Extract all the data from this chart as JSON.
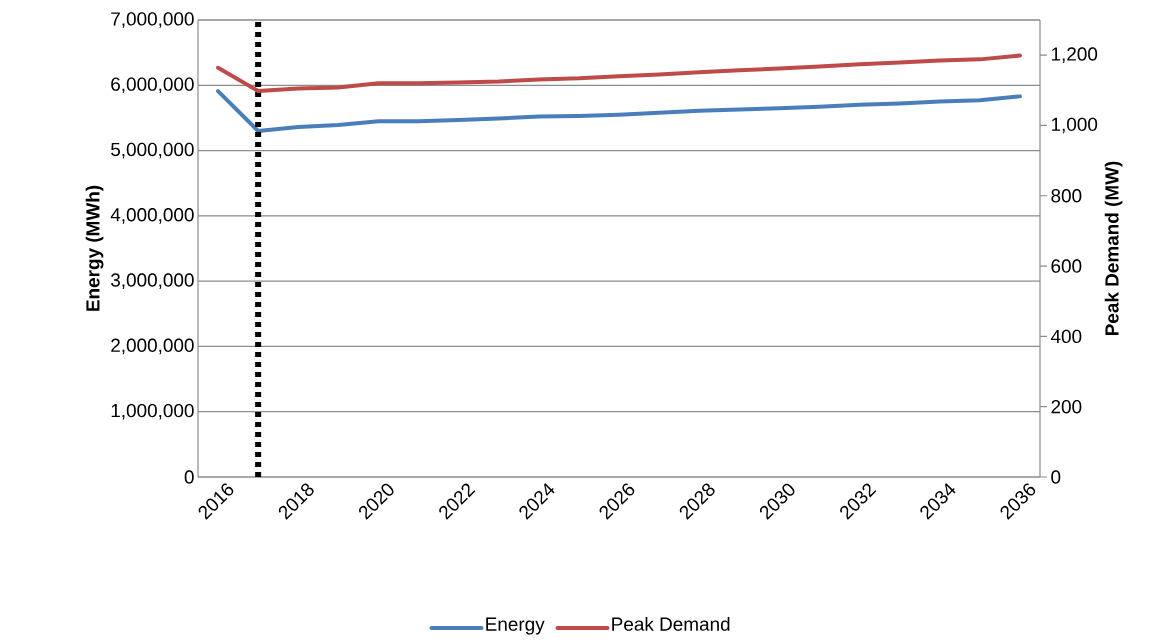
{
  "chart_data": {
    "type": "line",
    "ylabel": "Energy (MWh)",
    "y2label": "Peak Demand (MW)",
    "x": [
      2016,
      2017,
      2018,
      2019,
      2020,
      2021,
      2022,
      2023,
      2024,
      2025,
      2026,
      2027,
      2028,
      2029,
      2030,
      2031,
      2032,
      2033,
      2034,
      2035,
      2036
    ],
    "series": [
      {
        "name": "Energy",
        "color": "#4a7ebb",
        "values": [
          5910000,
          5300000,
          5360000,
          5390000,
          5450000,
          5450000,
          5470000,
          5490000,
          5520000,
          5530000,
          5550000,
          5580000,
          5610000,
          5630000,
          5650000,
          5670000,
          5700000,
          5720000,
          5750000,
          5770000,
          5830000
        ]
      },
      {
        "name": "Peak Demand",
        "color": "#be4b48",
        "axis": "y2",
        "values": [
          1164,
          1098,
          1105,
          1108,
          1120,
          1120,
          1122,
          1125,
          1131,
          1134,
          1140,
          1145,
          1151,
          1157,
          1162,
          1168,
          1174,
          1179,
          1185,
          1188,
          1199
        ]
      }
    ],
    "xlim": [
      2015.5,
      2036.5
    ],
    "xticks": [
      2016,
      2018,
      2020,
      2022,
      2024,
      2026,
      2028,
      2030,
      2032,
      2034,
      2036
    ],
    "ylim": [
      0,
      7000000
    ],
    "yticks": [
      {
        "value": 0,
        "label": "0"
      },
      {
        "value": 1000000,
        "label": "1,000,000"
      },
      {
        "value": 2000000,
        "label": "2,000,000"
      },
      {
        "value": 3000000,
        "label": "3,000,000"
      },
      {
        "value": 4000000,
        "label": "4,000,000"
      },
      {
        "value": 5000000,
        "label": "5,000,000"
      },
      {
        "value": 6000000,
        "label": "6,000,000"
      },
      {
        "value": 7000000,
        "label": "7,000,000"
      }
    ],
    "y2lim": [
      0,
      1300
    ],
    "y2ticks": [
      {
        "value": 0,
        "label": "0"
      },
      {
        "value": 200,
        "label": "200"
      },
      {
        "value": 400,
        "label": "400"
      },
      {
        "value": 600,
        "label": "600"
      },
      {
        "value": 800,
        "label": "800"
      },
      {
        "value": 1000,
        "label": "1,000"
      },
      {
        "value": 1200,
        "label": "1,200"
      }
    ],
    "ref_lines": [
      {
        "axis": "x",
        "value": 2017,
        "color": "#000000",
        "line_style": "dotted"
      }
    ],
    "grid": "y",
    "legend": "bottom",
    "marker": "none",
    "line_style": "solid"
  }
}
